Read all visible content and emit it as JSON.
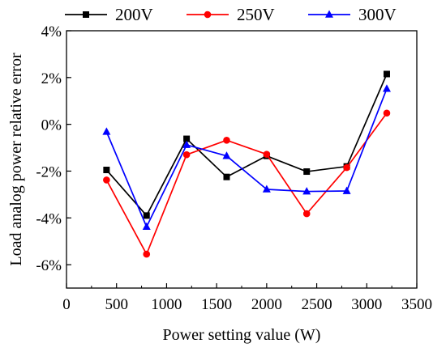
{
  "chart_data": {
    "type": "line",
    "title": "",
    "xlabel": "Power setting value (W)",
    "ylabel": "Load analog power relative error",
    "xlim": [
      0,
      3500
    ],
    "ylim": [
      -7,
      4
    ],
    "xticks": [
      0,
      500,
      1000,
      1500,
      2000,
      2500,
      3000,
      3500
    ],
    "yticks": [
      -6,
      -4,
      -2,
      0,
      2,
      4
    ],
    "ytick_labels": [
      "-6%",
      "-4%",
      "-2%",
      "0%",
      "2%",
      "4%"
    ],
    "legend": "top",
    "grid": false,
    "x": [
      400,
      800,
      1200,
      1600,
      2000,
      2400,
      2800,
      3200
    ],
    "series": [
      {
        "name": "200V",
        "color": "#000000",
        "marker": "square",
        "values": [
          -1.95,
          -3.9,
          -0.62,
          -2.25,
          -1.35,
          -2.02,
          -1.8,
          2.15
        ]
      },
      {
        "name": "250V",
        "color": "#ff0000",
        "marker": "circle",
        "values": [
          -2.38,
          -5.55,
          -1.3,
          -0.68,
          -1.28,
          -3.82,
          -1.85,
          0.48
        ]
      },
      {
        "name": "300V",
        "color": "#0000ff",
        "marker": "triangle",
        "values": [
          -0.32,
          -4.38,
          -0.88,
          -1.35,
          -2.78,
          -2.87,
          -2.85,
          1.52
        ]
      }
    ]
  }
}
